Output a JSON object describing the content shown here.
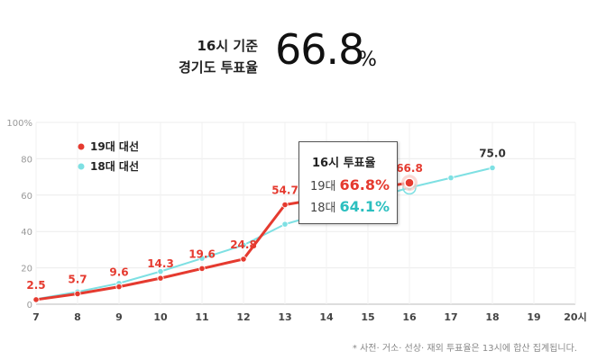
{
  "headline": {
    "line1": "16시 기준",
    "line2": "경기도 투표율",
    "value": "66.8",
    "unit": "%"
  },
  "chart_data": {
    "type": "line",
    "x": [
      7,
      8,
      9,
      10,
      11,
      12,
      13,
      14,
      15,
      16,
      17,
      18,
      19,
      20
    ],
    "x_tick_labels": [
      "7",
      "8",
      "9",
      "10",
      "11",
      "12",
      "13",
      "14",
      "15",
      "16",
      "17",
      "18",
      "19",
      "20시"
    ],
    "xlim": [
      7,
      20
    ],
    "ylim": [
      0,
      100
    ],
    "y_ticks": [
      0,
      20,
      40,
      60,
      80,
      100
    ],
    "y_tick_labels": [
      "0",
      "20",
      "40",
      "60",
      "80",
      "100%"
    ],
    "grid": true,
    "legend_position": "top-left",
    "series": [
      {
        "name": "19대 대선",
        "color": "#e53a2f",
        "points": [
          {
            "x": 7,
            "y": 2.5,
            "label": "2.5"
          },
          {
            "x": 8,
            "y": 5.7,
            "label": "5.7"
          },
          {
            "x": 9,
            "y": 9.6,
            "label": "9.6"
          },
          {
            "x": 10,
            "y": 14.3,
            "label": "14.3"
          },
          {
            "x": 11,
            "y": 19.6,
            "label": "19.6"
          },
          {
            "x": 12,
            "y": 24.8,
            "label": "24.8"
          },
          {
            "x": 13,
            "y": 54.7,
            "label": "54.7"
          },
          {
            "x": 14,
            "y": 58.5,
            "label": ""
          },
          {
            "x": 15,
            "y": 63.2,
            "label": ""
          },
          {
            "x": 16,
            "y": 66.8,
            "label": "66.8"
          }
        ]
      },
      {
        "name": "18대 대선",
        "color": "#7ee0e3",
        "points": [
          {
            "x": 7,
            "y": 2.8,
            "label": ""
          },
          {
            "x": 8,
            "y": 6.8,
            "label": ""
          },
          {
            "x": 9,
            "y": 11.5,
            "label": ""
          },
          {
            "x": 10,
            "y": 18.0,
            "label": ""
          },
          {
            "x": 11,
            "y": 25.2,
            "label": ""
          },
          {
            "x": 12,
            "y": 32.5,
            "label": ""
          },
          {
            "x": 13,
            "y": 44.0,
            "label": ""
          },
          {
            "x": 14,
            "y": 50.5,
            "label": ""
          },
          {
            "x": 15,
            "y": 57.5,
            "label": ""
          },
          {
            "x": 16,
            "y": 64.1,
            "label": ""
          },
          {
            "x": 17,
            "y": 69.5,
            "label": ""
          },
          {
            "x": 18,
            "y": 75.0,
            "label": "75.0"
          }
        ]
      }
    ],
    "tooltip": {
      "title": "16시 투표율",
      "rows": [
        {
          "key": "19대",
          "value": "66.8%"
        },
        {
          "key": "18대",
          "value": "64.1%"
        }
      ]
    }
  },
  "footnote": "* 사전· 거소· 선상· 재외 투표율은 13시에 합산 집계됩니다."
}
